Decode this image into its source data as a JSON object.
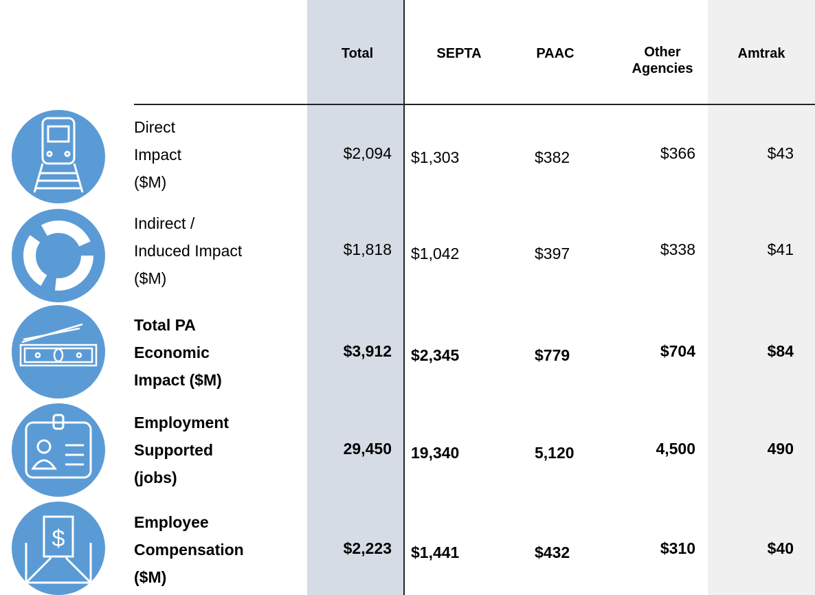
{
  "table": {
    "columns": [
      "Total",
      "SEPTA",
      "PAAC",
      [
        "Other",
        "Agencies"
      ],
      "Amtrak"
    ],
    "rows": [
      {
        "label": [
          "Direct",
          "Impact",
          "($M)"
        ],
        "values": [
          "$2,094",
          "$1,303",
          "$382",
          "$366",
          "$43"
        ]
      },
      {
        "label": [
          "Indirect /",
          "Induced Impact",
          "($M)"
        ],
        "values": [
          "$1,818",
          "$1,042",
          "$397",
          "$338",
          "$41"
        ]
      },
      {
        "label": [
          "Total PA",
          "Economic",
          "Impact ($M)"
        ],
        "values": [
          "$3,912",
          "$2,345",
          "$779",
          "$704",
          "$84"
        ]
      },
      {
        "label": [
          "Employment",
          "Supported",
          "(jobs)"
        ],
        "values": [
          "29,450",
          "19,340",
          "5,120",
          "4,500",
          "490"
        ]
      },
      {
        "label": [
          "Employee",
          "Compensation",
          "($M)"
        ],
        "values": [
          "$2,223",
          "$1,441",
          "$432",
          "$310",
          "$40"
        ]
      }
    ]
  }
}
